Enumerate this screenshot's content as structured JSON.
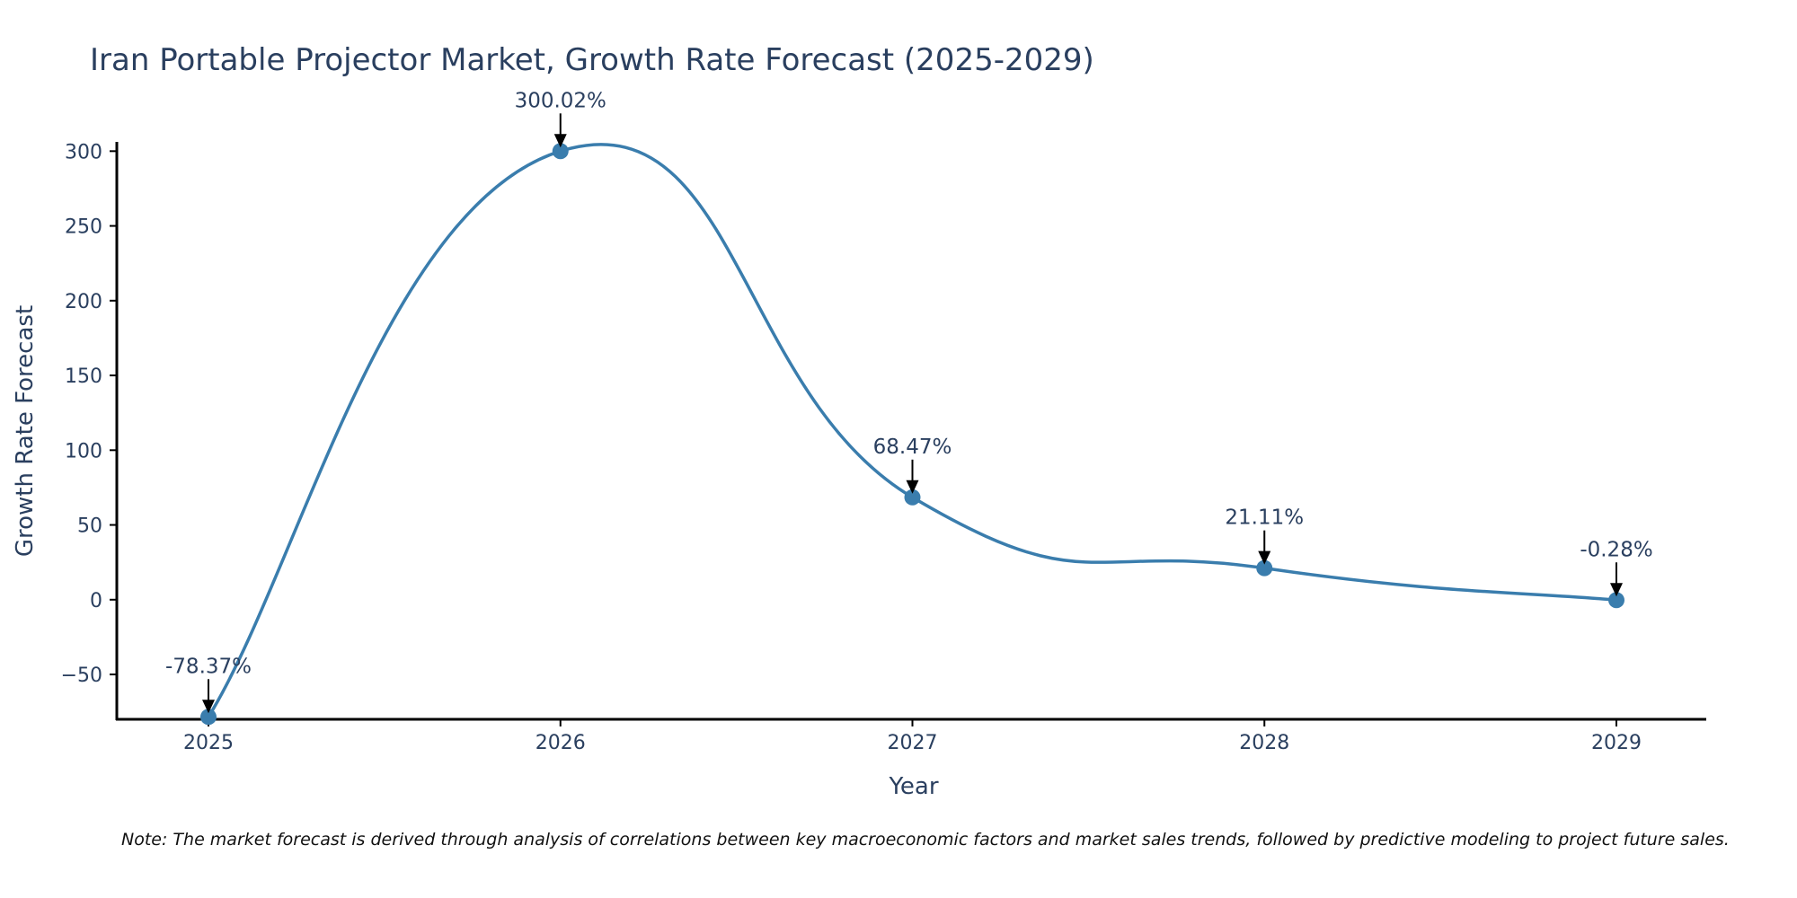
{
  "chart_data": {
    "type": "line",
    "title": "Iran Portable Projector Market, Growth Rate Forecast (2025-2029)",
    "xlabel": "Year",
    "ylabel": "Growth Rate Forecast",
    "categories": [
      "2025",
      "2026",
      "2027",
      "2028",
      "2029"
    ],
    "series": [
      {
        "name": "Growth Rate Forecast",
        "values": [
          -78.37,
          300.02,
          68.47,
          21.11,
          -0.28
        ],
        "color": "#3a7dad"
      }
    ],
    "data_labels": [
      "-78.37%",
      "300.02%",
      "68.47%",
      "21.11%",
      "-0.28%"
    ],
    "ylim": [
      -80,
      305
    ],
    "yticks": [
      -50,
      0,
      50,
      100,
      150,
      200,
      250,
      300
    ],
    "ytick_labels": [
      "−50",
      "0",
      "50",
      "100",
      "150",
      "200",
      "250",
      "300"
    ],
    "grid": false,
    "line_shape": "spline",
    "note": "Note: The market forecast is derived through analysis of correlations between key macroeconomic factors and market sales trends, followed by predictive modeling to project future sales."
  }
}
